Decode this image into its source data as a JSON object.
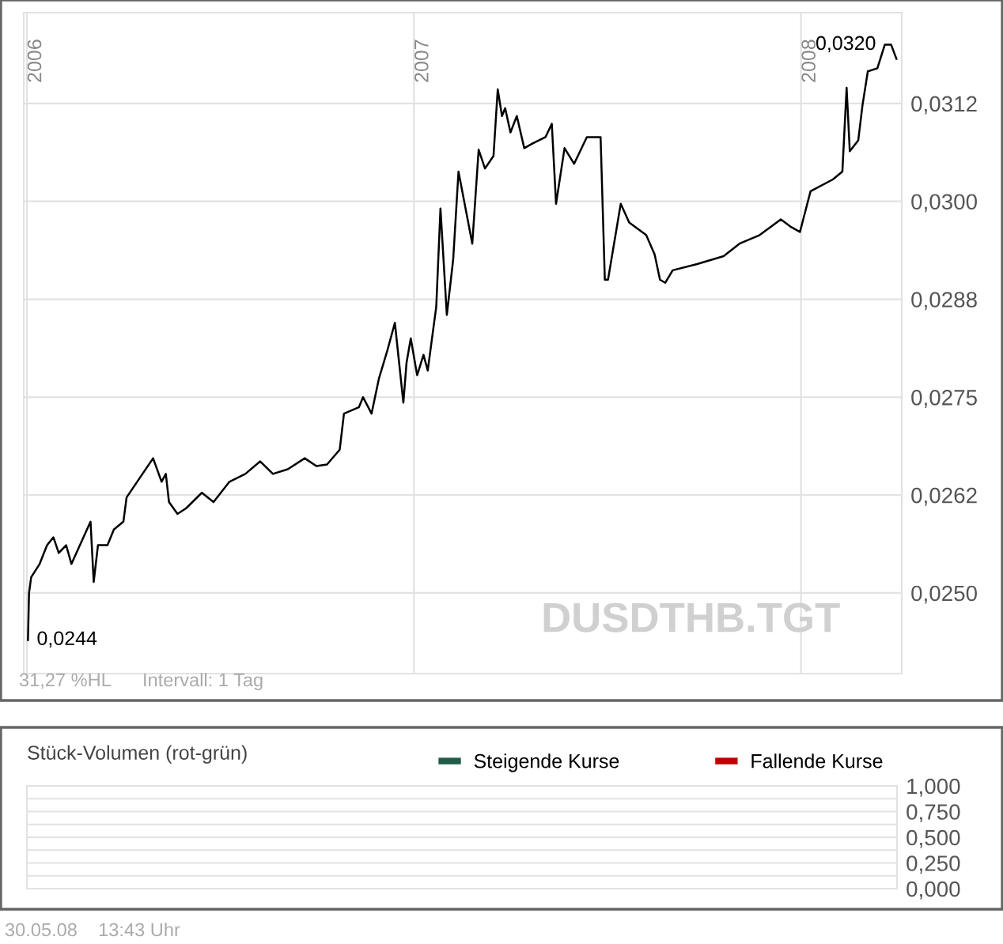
{
  "chart_data": [
    {
      "type": "line",
      "xlim": [
        "2005-12-29",
        "2008-04-05"
      ],
      "ylim": [
        0.02397,
        0.03241
      ],
      "xticks": [
        {
          "value": "2006-01-01",
          "label": "2006"
        },
        {
          "value": "2007-01-01",
          "label": "2007"
        },
        {
          "value": "2008-01-01",
          "label": "2008"
        }
      ],
      "yticks": [
        {
          "value": 0.025,
          "label": "0,0250"
        },
        {
          "value": 0.02625,
          "label": "0,0262"
        },
        {
          "value": 0.0275,
          "label": "0,0275"
        },
        {
          "value": 0.02875,
          "label": "0,0288"
        },
        {
          "value": 0.03,
          "label": "0,0300"
        },
        {
          "value": 0.03125,
          "label": "0,0312"
        }
      ],
      "grid": true,
      "legend": false,
      "marker": "none",
      "line_style": "solid",
      "x": [
        "2006-01-02",
        "2006-01-03",
        "2006-01-05",
        "2006-01-13",
        "2006-01-20",
        "2006-01-26",
        "2006-01-31",
        "2006-02-07",
        "2006-02-12",
        "2006-03-02",
        "2006-03-05",
        "2006-03-09",
        "2006-03-18",
        "2006-03-24",
        "2006-04-02",
        "2006-04-05",
        "2006-04-20",
        "2006-04-30",
        "2006-05-08",
        "2006-05-12",
        "2006-05-15",
        "2006-05-23",
        "2006-05-31",
        "2006-06-15",
        "2006-06-26",
        "2006-07-11",
        "2006-07-26",
        "2006-08-09",
        "2006-08-21",
        "2006-09-04",
        "2006-09-20",
        "2006-10-01",
        "2006-10-11",
        "2006-10-23",
        "2006-10-27",
        "2006-11-10",
        "2006-11-14",
        "2006-11-22",
        "2006-11-29",
        "2006-12-07",
        "2006-12-14",
        "2006-12-22",
        "2006-12-25",
        "2006-12-29",
        "2007-01-04",
        "2007-01-10",
        "2007-01-14",
        "2007-01-19",
        "2007-01-22",
        "2007-01-26",
        "2007-02-01",
        "2007-02-07",
        "2007-02-12",
        "2007-02-25",
        "2007-03-03",
        "2007-03-09",
        "2007-03-17",
        "2007-03-21",
        "2007-03-25",
        "2007-03-28",
        "2007-04-02",
        "2007-04-08",
        "2007-04-15",
        "2007-04-23",
        "2007-05-05",
        "2007-05-11",
        "2007-05-15",
        "2007-05-23",
        "2007-06-01",
        "2007-06-13",
        "2007-06-26",
        "2007-06-30",
        "2007-07-03",
        "2007-07-15",
        "2007-07-23",
        "2007-08-08",
        "2007-08-16",
        "2007-08-21",
        "2007-08-26",
        "2007-09-02",
        "2007-09-25",
        "2007-10-20",
        "2007-11-04",
        "2007-11-23",
        "2007-12-13",
        "2007-12-23",
        "2007-12-31",
        "2008-01-10",
        "2008-01-31",
        "2008-02-09",
        "2008-02-13",
        "2008-02-16",
        "2008-02-24",
        "2008-02-28",
        "2008-03-04",
        "2008-03-13",
        "2008-03-20",
        "2008-03-26",
        "2008-03-31"
      ],
      "series": [
        {
          "color": "#000000",
          "values": [
            0.0244,
            0.025,
            0.0252,
            0.02537,
            0.02561,
            0.02571,
            0.02551,
            0.02561,
            0.02537,
            0.02591,
            0.02514,
            0.02561,
            0.02561,
            0.02581,
            0.02591,
            0.02622,
            0.02652,
            0.02672,
            0.02642,
            0.02652,
            0.02616,
            0.02601,
            0.02608,
            0.02628,
            0.02616,
            0.02642,
            0.02652,
            0.02668,
            0.02652,
            0.02658,
            0.02672,
            0.02662,
            0.02664,
            0.02683,
            0.02729,
            0.02737,
            0.0275,
            0.02729,
            0.02774,
            0.0281,
            0.02845,
            0.02743,
            0.02794,
            0.02825,
            0.02778,
            0.02804,
            0.02784,
            0.02835,
            0.02865,
            0.02991,
            0.02855,
            0.02926,
            0.03038,
            0.02946,
            0.03066,
            0.03042,
            0.03058,
            0.03143,
            0.03109,
            0.03119,
            0.03088,
            0.03109,
            0.03068,
            0.03074,
            0.03082,
            0.03099,
            0.02997,
            0.03068,
            0.03048,
            0.03082,
            0.03082,
            0.029,
            0.029,
            0.02997,
            0.02973,
            0.02957,
            0.02932,
            0.029,
            0.02896,
            0.02912,
            0.0292,
            0.0293,
            0.02946,
            0.02957,
            0.02977,
            0.02967,
            0.02961,
            0.03013,
            0.03028,
            0.03038,
            0.03145,
            0.03064,
            0.03078,
            0.03123,
            0.03166,
            0.0317,
            0.032,
            0.032,
            0.03182
          ]
        }
      ],
      "annotations": [
        {
          "text": "0,0244",
          "x": "2006-01-02",
          "y": 0.0244
        },
        {
          "text": "0,0320",
          "x": "2008-03-20",
          "y": 0.032
        },
        "DUSDTHB.TGT",
        "31,27 %HL",
        "Intervall: 1 Tag"
      ]
    },
    {
      "type": "bar",
      "title": "Stück-Volumen (rot-grün)",
      "ylim": [
        0,
        1
      ],
      "yticks": [
        {
          "value": 0,
          "label": "0,000"
        },
        {
          "value": 0.125,
          "label": null
        },
        {
          "value": 0.25,
          "label": "0,250"
        },
        {
          "value": 0.375,
          "label": null
        },
        {
          "value": 0.5,
          "label": "0,500"
        },
        {
          "value": 0.625,
          "label": null
        },
        {
          "value": 0.75,
          "label": "0,750"
        },
        {
          "value": 0.875,
          "label": null
        },
        {
          "value": 1,
          "label": "1,000"
        }
      ],
      "grid": true,
      "legend": "top right",
      "series": [
        {
          "name": "Steigende Kurse",
          "color": "#1f5c4a"
        },
        {
          "name": "Fallende Kurse",
          "color": "#c00000"
        }
      ],
      "annotations": [
        "30.05.08    13:43 Uhr"
      ]
    }
  ]
}
